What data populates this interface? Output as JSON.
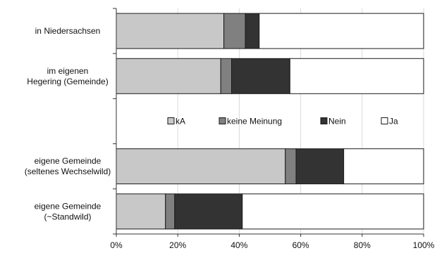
{
  "chart_data": {
    "type": "bar",
    "orientation": "horizontal",
    "stacked": true,
    "percent_stacked": true,
    "categories": [
      "in Niedersachsen",
      "im eigenen\nHegering (Gemeinde)",
      "",
      "eigene Gemeinde\n(seltenes Wechselwild)",
      "eigene Gemeinde\n(~Standwild)"
    ],
    "series": [
      {
        "name": "kA",
        "color": "#c8c8c8",
        "values": [
          35,
          34,
          null,
          55,
          16
        ]
      },
      {
        "name": "keine Meinung",
        "color": "#808080",
        "values": [
          7,
          3.5,
          null,
          3.5,
          3
        ]
      },
      {
        "name": "Nein",
        "color": "#333333",
        "values": [
          4.5,
          19,
          null,
          15.5,
          22
        ]
      },
      {
        "name": "Ja",
        "color": "#ffffff",
        "values": [
          53.5,
          43.5,
          null,
          26,
          59
        ]
      }
    ],
    "xlim": [
      0,
      100
    ],
    "xticks": [
      "0%",
      "20%",
      "40%",
      "60%",
      "80%",
      "100%"
    ],
    "grid": true,
    "legend_position": "inside, middle row"
  }
}
